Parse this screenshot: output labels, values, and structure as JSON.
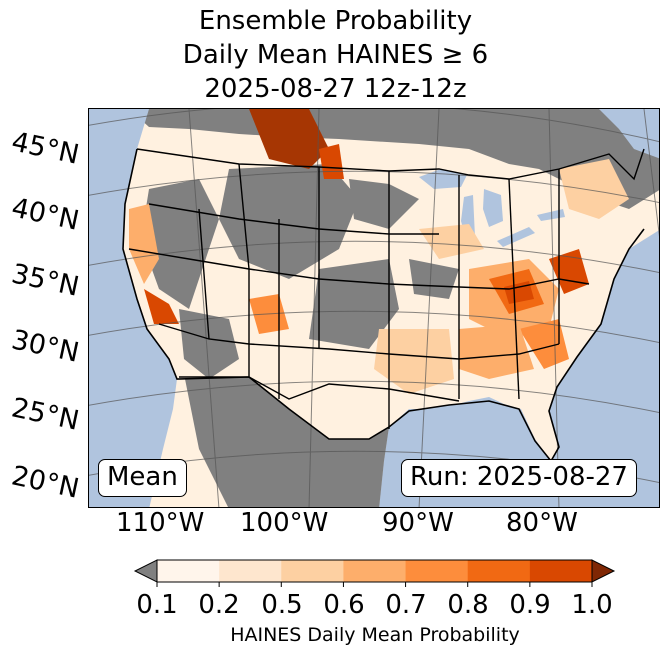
{
  "title": {
    "line1": "Ensemble Probability",
    "line2": "Daily Mean HAINES ≥ 6",
    "line3": "2025-08-27 12z-12z"
  },
  "map": {
    "latitude_labels": [
      "45°N",
      "40°N",
      "35°N",
      "30°N",
      "25°N",
      "20°N"
    ],
    "longitude_labels": [
      "110°W",
      "100°W",
      "90°W",
      "80°W"
    ],
    "stat_label": "Mean",
    "run_label": "Run: 2025-08-27",
    "colors": {
      "ocean": "#b0c4de",
      "below_threshold": "#808080",
      "scale": [
        "#fff5eb",
        "#fee6ce",
        "#fdd0a2",
        "#fdae6b",
        "#fd8d3c",
        "#f16913",
        "#d94801",
        "#a63603"
      ]
    }
  },
  "colorbar": {
    "ticks": [
      "0.1",
      "0.2",
      "0.5",
      "0.6",
      "0.7",
      "0.8",
      "0.9",
      "1.0"
    ],
    "label": "HAINES Daily Mean Probability",
    "under_color": "#808080",
    "over_color": "#7f2704"
  }
}
